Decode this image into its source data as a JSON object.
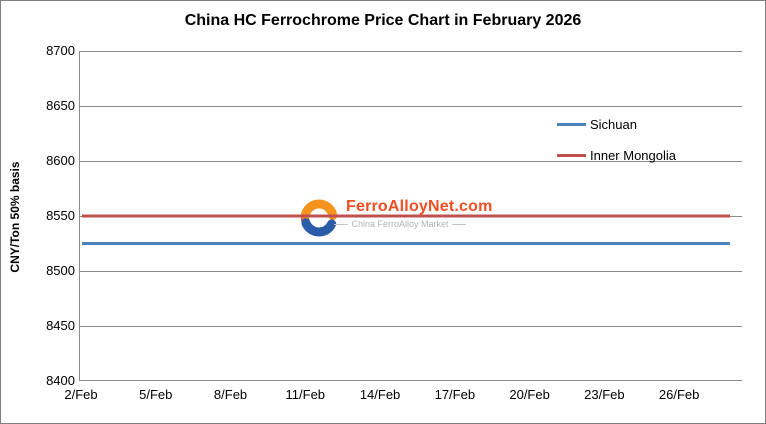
{
  "window": {
    "background": "#ffffff",
    "border_color": "#7f7f7f"
  },
  "chart_data": {
    "type": "line",
    "title": "China HC Ferrochrome Price Chart in February 2026",
    "xlabel": "",
    "ylabel": "CNY/Ton 50% basis",
    "ylim": [
      8400,
      8700
    ],
    "ytick_step": 50,
    "yticks": [
      8400,
      8450,
      8500,
      8550,
      8600,
      8650,
      8700
    ],
    "xticks": [
      "2/Feb",
      "5/Feb",
      "8/Feb",
      "11/Feb",
      "14/Feb",
      "17/Feb",
      "20/Feb",
      "23/Feb",
      "26/Feb"
    ],
    "xtick_days": [
      2,
      5,
      8,
      11,
      14,
      17,
      20,
      23,
      26
    ],
    "x_days": [
      2,
      3,
      4,
      5,
      6,
      7,
      8,
      9,
      10,
      11,
      12,
      13,
      14,
      15,
      16,
      17,
      18,
      19,
      20,
      21,
      22,
      23,
      24,
      25,
      26,
      27,
      28
    ],
    "grid": true,
    "gridline_color": "#8c8c8c",
    "legend_position": "upper-right-inside",
    "series": [
      {
        "name": "Sichuan",
        "color": "#4f81bd",
        "values": [
          8525,
          8525,
          8525,
          8525,
          8525,
          8525,
          8525,
          8525,
          8525,
          8525,
          8525,
          8525,
          8525,
          8525,
          8525,
          8525,
          8525,
          8525,
          8525,
          8525,
          8525,
          8525,
          8525,
          8525,
          8525,
          8525,
          8525
        ]
      },
      {
        "name": "Inner Mongolia",
        "color": "#c0504d",
        "values": [
          8550,
          8550,
          8550,
          8550,
          8550,
          8550,
          8550,
          8550,
          8550,
          8550,
          8550,
          8550,
          8550,
          8550,
          8550,
          8550,
          8550,
          8550,
          8550,
          8550,
          8550,
          8550,
          8550,
          8550,
          8550,
          8550,
          8550
        ]
      }
    ]
  },
  "watermark": {
    "brand": "FerroAlloyNet.com",
    "brand_color": "#f04f23",
    "tagline": "China FerroAlloy Market",
    "tagline_color": "#b3b3b8",
    "logo": {
      "orange": "#f6921e",
      "blue": "#2a5caa",
      "red": "#d93a26"
    }
  }
}
